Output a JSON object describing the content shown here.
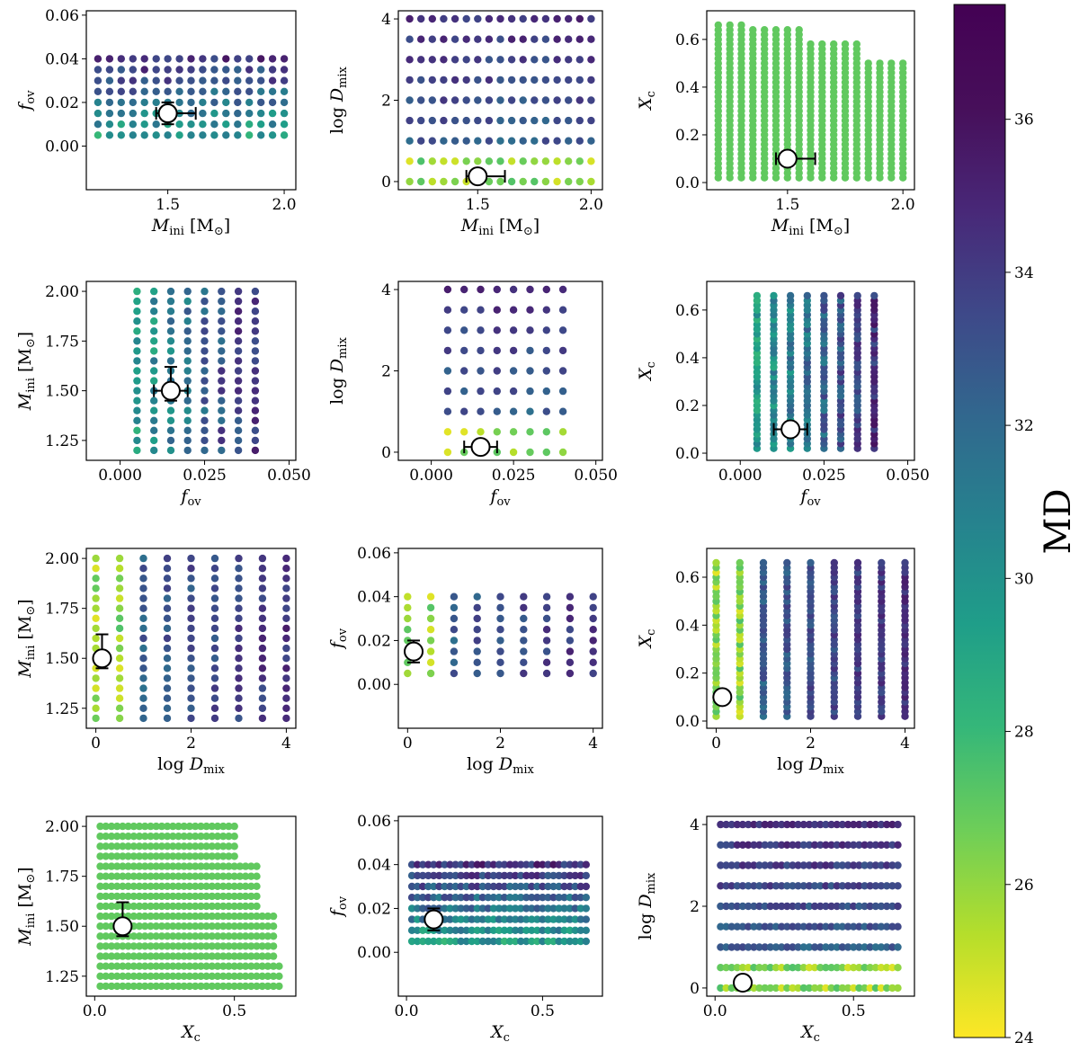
{
  "figure": {
    "colorbar": {
      "label": "MD",
      "range": [
        24,
        37.5
      ],
      "ticks": [
        24,
        26,
        28,
        30,
        32,
        34,
        36
      ]
    },
    "axis_labels": {
      "Mini": {
        "base": "M",
        "sub": "ini",
        "unit": "[M",
        "unit_close": "]"
      },
      "fov": {
        "base": "f",
        "sub": "ov"
      },
      "Dmix": {
        "prefix": "log ",
        "base": "D",
        "sub": "mix"
      },
      "Xc": {
        "base": "X",
        "sub": "c"
      }
    },
    "best_fit": {
      "Mini": 1.5,
      "fov": 0.015,
      "Dmix": 0.13,
      "Xc": 0.1
    }
  },
  "chart_data": [
    {
      "type": "scatter",
      "panel": "1-1",
      "x": "Mini",
      "y": "fov",
      "xlim": [
        1.15,
        2.05
      ],
      "ylim": [
        -0.02,
        0.062
      ],
      "xticks": [
        "1.5",
        "2.0"
      ],
      "yticks": [
        "0.00",
        "0.02",
        "0.04",
        "0.06"
      ],
      "marker": {
        "x": 1.5,
        "y": 0.015,
        "xerr": [
          0.05,
          0.12
        ],
        "yerr": [
          0.005,
          0.005
        ]
      }
    },
    {
      "type": "scatter",
      "panel": "1-2",
      "x": "Mini",
      "y": "Dmix",
      "xlim": [
        1.15,
        2.05
      ],
      "ylim": [
        -0.2,
        4.2
      ],
      "xticks": [
        "1.5",
        "2.0"
      ],
      "yticks": [
        "0",
        "2",
        "4"
      ],
      "marker": {
        "x": 1.5,
        "y": 0.13,
        "xerr": [
          0.05,
          0.12
        ],
        "yerr": null
      }
    },
    {
      "type": "scatter",
      "panel": "1-3",
      "x": "Mini",
      "y": "Xc",
      "xlim": [
        1.15,
        2.05
      ],
      "ylim": [
        -0.03,
        0.72
      ],
      "xticks": [
        "1.5",
        "2.0"
      ],
      "yticks": [
        "0.0",
        "0.2",
        "0.4",
        "0.6"
      ],
      "marker": {
        "x": 1.5,
        "y": 0.1,
        "xerr": [
          0.05,
          0.12
        ],
        "yerr": null
      }
    },
    {
      "type": "scatter",
      "panel": "2-1",
      "x": "fov",
      "y": "Mini",
      "xlim": [
        -0.01,
        0.052
      ],
      "ylim": [
        1.15,
        2.05
      ],
      "xticks": [
        "0.000",
        "0.025",
        "0.050"
      ],
      "yticks": [
        "1.25",
        "1.50",
        "1.75",
        "2.00"
      ],
      "marker": {
        "x": 0.015,
        "y": 1.5,
        "xerr": [
          0.005,
          0.005
        ],
        "yerr": [
          0.05,
          0.12
        ]
      }
    },
    {
      "type": "scatter",
      "panel": "2-2",
      "x": "fov",
      "y": "Dmix",
      "xlim": [
        -0.01,
        0.052
      ],
      "ylim": [
        -0.2,
        4.2
      ],
      "xticks": [
        "0.000",
        "0.025",
        "0.050"
      ],
      "yticks": [
        "0",
        "2",
        "4"
      ],
      "marker": {
        "x": 0.015,
        "y": 0.13,
        "xerr": [
          0.005,
          0.005
        ],
        "yerr": null
      }
    },
    {
      "type": "scatter",
      "panel": "2-3",
      "x": "fov",
      "y": "Xc",
      "xlim": [
        -0.01,
        0.052
      ],
      "ylim": [
        -0.03,
        0.72
      ],
      "xticks": [
        "0.000",
        "0.025",
        "0.050"
      ],
      "yticks": [
        "0.0",
        "0.2",
        "0.4",
        "0.6"
      ],
      "marker": {
        "x": 0.015,
        "y": 0.1,
        "xerr": [
          0.005,
          0.005
        ],
        "yerr": null
      }
    },
    {
      "type": "scatter",
      "panel": "3-1",
      "x": "Dmix",
      "y": "Mini",
      "xlim": [
        -0.2,
        4.2
      ],
      "ylim": [
        1.15,
        2.05
      ],
      "xticks": [
        "0",
        "2",
        "4"
      ],
      "yticks": [
        "1.25",
        "1.50",
        "1.75",
        "2.00"
      ],
      "marker": {
        "x": 0.13,
        "y": 1.5,
        "xerr": null,
        "yerr": [
          0.05,
          0.12
        ]
      }
    },
    {
      "type": "scatter",
      "panel": "3-2",
      "x": "Dmix",
      "y": "fov",
      "xlim": [
        -0.2,
        4.2
      ],
      "ylim": [
        -0.02,
        0.062
      ],
      "xticks": [
        "0",
        "2",
        "4"
      ],
      "yticks": [
        "0.00",
        "0.02",
        "0.04",
        "0.06"
      ],
      "marker": {
        "x": 0.13,
        "y": 0.015,
        "xerr": null,
        "yerr": [
          0.005,
          0.005
        ]
      }
    },
    {
      "type": "scatter",
      "panel": "3-3",
      "x": "Dmix",
      "y": "Xc",
      "xlim": [
        -0.2,
        4.2
      ],
      "ylim": [
        -0.03,
        0.72
      ],
      "xticks": [
        "0",
        "2",
        "4"
      ],
      "yticks": [
        "0.0",
        "0.2",
        "0.4",
        "0.6"
      ],
      "marker": {
        "x": 0.13,
        "y": 0.1,
        "xerr": null,
        "yerr": null
      }
    },
    {
      "type": "scatter",
      "panel": "4-1",
      "x": "Xc",
      "y": "Mini",
      "xlim": [
        -0.03,
        0.72
      ],
      "ylim": [
        1.15,
        2.05
      ],
      "xticks": [
        "0.0",
        "0.5"
      ],
      "yticks": [
        "1.25",
        "1.50",
        "1.75",
        "2.00"
      ],
      "marker": {
        "x": 0.1,
        "y": 1.5,
        "xerr": null,
        "yerr": [
          0.05,
          0.12
        ]
      }
    },
    {
      "type": "scatter",
      "panel": "4-2",
      "x": "Xc",
      "y": "fov",
      "xlim": [
        -0.03,
        0.72
      ],
      "ylim": [
        -0.02,
        0.062
      ],
      "xticks": [
        "0.0",
        "0.5"
      ],
      "yticks": [
        "0.00",
        "0.02",
        "0.04",
        "0.06"
      ],
      "marker": {
        "x": 0.1,
        "y": 0.015,
        "xerr": null,
        "yerr": [
          0.005,
          0.005
        ]
      }
    },
    {
      "type": "scatter",
      "panel": "4-3",
      "x": "Xc",
      "y": "Dmix",
      "xlim": [
        -0.03,
        0.72
      ],
      "ylim": [
        -0.2,
        4.2
      ],
      "xticks": [
        "0.0",
        "0.5"
      ],
      "yticks": [
        "0",
        "2",
        "4"
      ],
      "marker": {
        "x": 0.1,
        "y": 0.13,
        "xerr": null,
        "yerr": null
      }
    }
  ]
}
